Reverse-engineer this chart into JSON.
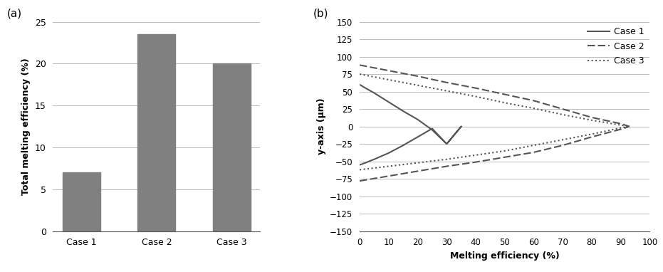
{
  "bar_categories": [
    "Case 1",
    "Case 2",
    "Case 3"
  ],
  "bar_values": [
    7.0,
    23.5,
    20.0
  ],
  "bar_color": "#808080",
  "bar_ylabel": "Total melting efficiency (%)",
  "bar_ylim": [
    0,
    25
  ],
  "bar_yticks": [
    0,
    5,
    10,
    15,
    20,
    25
  ],
  "case1_top_x": [
    0,
    2,
    5,
    10,
    15,
    20,
    25,
    30,
    35
  ],
  "case1_top_y": [
    60,
    55,
    48,
    35,
    22,
    10,
    -5,
    -25,
    0
  ],
  "case1_bot_x": [
    0,
    2,
    5,
    10,
    15,
    20,
    25,
    30,
    35
  ],
  "case1_bot_y": [
    -55,
    -52,
    -47,
    -38,
    -27,
    -15,
    -3,
    -25,
    0
  ],
  "case2_x": [
    0,
    10,
    20,
    30,
    40,
    50,
    60,
    70,
    80,
    90,
    93
  ],
  "case2_y_top": [
    88,
    80,
    72,
    63,
    55,
    46,
    37,
    25,
    13,
    4,
    0
  ],
  "case2_y_bot": [
    -78,
    -71,
    -64,
    -57,
    -51,
    -44,
    -37,
    -27,
    -15,
    -4,
    0
  ],
  "case3_x": [
    0,
    10,
    20,
    30,
    40,
    50,
    60,
    70,
    80,
    90,
    93
  ],
  "case3_y_top": [
    75,
    67,
    59,
    51,
    43,
    34,
    26,
    17,
    9,
    2,
    0
  ],
  "case3_y_bot": [
    -62,
    -57,
    -52,
    -47,
    -41,
    -35,
    -27,
    -19,
    -11,
    -2,
    0
  ],
  "line_ylabel": "y-axis (μm)",
  "line_xlabel": "Melting efficiency (%)",
  "line_ylim": [
    -150,
    150
  ],
  "line_yticks": [
    -150,
    -125,
    -100,
    -75,
    -50,
    -25,
    0,
    25,
    50,
    75,
    100,
    125,
    150
  ],
  "line_xlim": [
    0,
    100
  ],
  "line_xticks": [
    0,
    10,
    20,
    30,
    40,
    50,
    60,
    70,
    80,
    90,
    100
  ],
  "legend_labels": [
    "Case 1",
    "Case 2",
    "Case 3"
  ],
  "line_color": "#555555",
  "label_a": "(a)",
  "label_b": "(b)"
}
